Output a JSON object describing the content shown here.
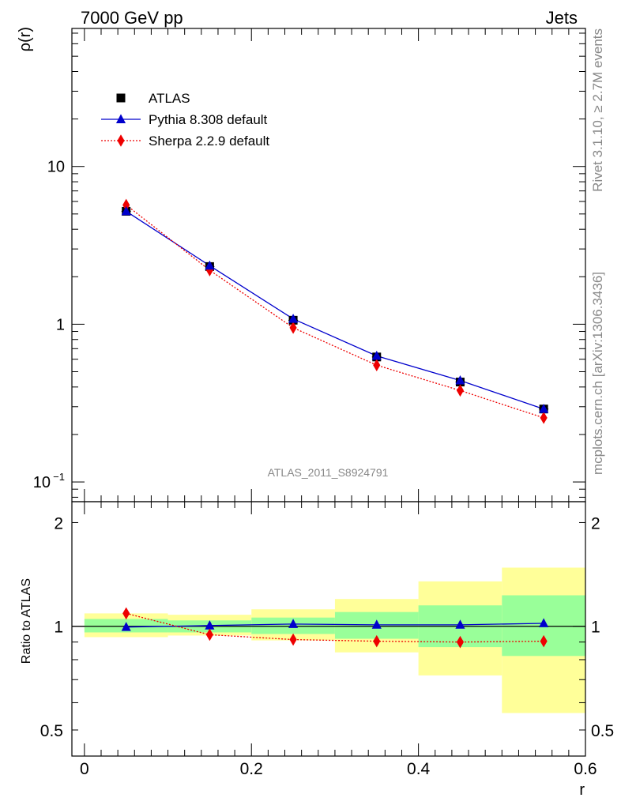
{
  "header": {
    "left": "7000 GeV pp",
    "right": "Jets"
  },
  "side": {
    "rivet": "Rivet 3.1.10, ≥ 2.7M events",
    "source": "mcplots.cern.ch [arXiv:1306.3436]"
  },
  "watermark": "ATLAS_2011_S8924791",
  "colors": {
    "atlas": "#000000",
    "pythia": "#0000cc",
    "sherpa": "#ee0000",
    "band_outer": "#ffff99",
    "band_inner": "#99ff99"
  },
  "legend": {
    "items": [
      {
        "label": "ATLAS",
        "marker": "square"
      },
      {
        "label": "Pythia 8.308 default",
        "marker": "triangle"
      },
      {
        "label": "Sherpa 2.2.9 default",
        "marker": "diamond"
      }
    ]
  },
  "chart_data": [
    {
      "type": "line",
      "panel": "main",
      "ylabel": "ρ(r)",
      "yscale": "log",
      "ylim": [
        0.075,
        75
      ],
      "xlim": [
        -0.015,
        0.6
      ],
      "yticks": [
        {
          "value": 0.1,
          "label": "10",
          "exp": "−1"
        },
        {
          "value": 1,
          "label": "1"
        },
        {
          "value": 10,
          "label": "10"
        }
      ],
      "x": [
        0.05,
        0.15,
        0.25,
        0.35,
        0.45,
        0.55
      ],
      "series": [
        {
          "name": "ATLAS",
          "values": [
            5.2,
            2.32,
            1.06,
            0.62,
            0.43,
            0.29
          ]
        },
        {
          "name": "Pythia 8.308 default",
          "values": [
            5.2,
            2.35,
            1.08,
            0.63,
            0.44,
            0.29
          ]
        },
        {
          "name": "Sherpa 2.2.9 default",
          "values": [
            5.7,
            2.2,
            0.95,
            0.55,
            0.38,
            0.255
          ]
        }
      ]
    },
    {
      "type": "line",
      "panel": "ratio",
      "ylabel": "Ratio to ATLAS",
      "xlabel": "r",
      "yscale": "log",
      "ylim": [
        0.42,
        2.3
      ],
      "xlim": [
        -0.015,
        0.6
      ],
      "xticks": [
        {
          "value": 0,
          "label": "0"
        },
        {
          "value": 0.2,
          "label": "0.2"
        },
        {
          "value": 0.4,
          "label": "0.4"
        },
        {
          "value": 0.6,
          "label": "0.6"
        }
      ],
      "yticks": [
        {
          "value": 0.5,
          "label": "0.5"
        },
        {
          "value": 1,
          "label": "1"
        },
        {
          "value": 2,
          "label": "2"
        }
      ],
      "x": [
        0.05,
        0.15,
        0.25,
        0.35,
        0.45,
        0.55
      ],
      "bands": {
        "x_low": [
          0.0,
          0.1,
          0.2,
          0.3,
          0.4,
          0.5
        ],
        "x_high": [
          0.1,
          0.2,
          0.3,
          0.4,
          0.5,
          0.6
        ],
        "outer_low": [
          0.93,
          0.94,
          0.91,
          0.84,
          0.72,
          0.56
        ],
        "outer_high": [
          1.09,
          1.08,
          1.12,
          1.2,
          1.35,
          1.48
        ],
        "inner_low": [
          0.96,
          0.96,
          0.95,
          0.92,
          0.87,
          0.82
        ],
        "inner_high": [
          1.05,
          1.04,
          1.06,
          1.1,
          1.15,
          1.23
        ]
      },
      "series": [
        {
          "name": "Pythia 8.308 default",
          "values": [
            0.995,
            1.005,
            1.015,
            1.01,
            1.01,
            1.02
          ]
        },
        {
          "name": "Sherpa 2.2.9 default",
          "values": [
            1.09,
            0.945,
            0.915,
            0.905,
            0.9,
            0.905
          ]
        }
      ]
    }
  ]
}
